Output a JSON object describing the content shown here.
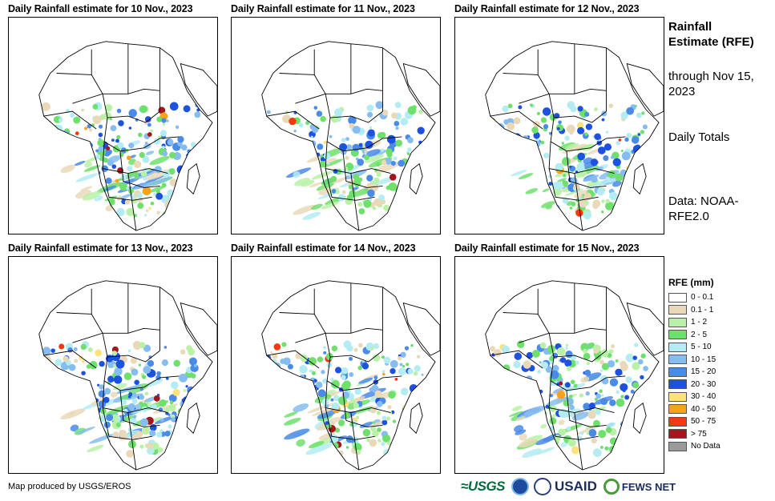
{
  "panels": [
    {
      "title": "Daily Rainfall estimate for 10 Nov., 2023",
      "seed": 11
    },
    {
      "title": "Daily Rainfall estimate for 11 Nov., 2023",
      "seed": 23
    },
    {
      "title": "Daily Rainfall estimate for 12 Nov., 2023",
      "seed": 37
    },
    {
      "title": "Daily Rainfall estimate for 13 Nov., 2023",
      "seed": 41
    },
    {
      "title": "Daily Rainfall estimate for 14 Nov., 2023",
      "seed": 53
    },
    {
      "title": "Daily Rainfall estimate for 15 Nov., 2023",
      "seed": 67
    }
  ],
  "side": {
    "title": "Rainfall Estimate (RFE)",
    "through": "through Nov 15, 2023",
    "daily": "Daily Totals",
    "data": "Data: NOAA-RFE2.0"
  },
  "legend": {
    "title": "RFE (mm)",
    "items": [
      {
        "label": "0 - 0.1",
        "color": "#ffffff"
      },
      {
        "label": "0.1 - 1",
        "color": "#ead9b8"
      },
      {
        "label": "1 - 2",
        "color": "#b9f2a7"
      },
      {
        "label": "2 - 5",
        "color": "#6fe06c"
      },
      {
        "label": "5 - 10",
        "color": "#b3ecf2"
      },
      {
        "label": "10 - 15",
        "color": "#86bdf0"
      },
      {
        "label": "15 - 20",
        "color": "#4a8ae8"
      },
      {
        "label": "20 - 30",
        "color": "#1d52e0"
      },
      {
        "label": "30 - 40",
        "color": "#ffe27a"
      },
      {
        "label": "40 - 50",
        "color": "#f7a21a"
      },
      {
        "label": "50 - 75",
        "color": "#f23a0e"
      },
      {
        "label": "> 75",
        "color": "#a3171a"
      },
      {
        "label": "No Data",
        "color": "#9a9a9a"
      }
    ]
  },
  "credit": "Map produced by USGS/EROS",
  "logos": {
    "usgs": "≈USGS",
    "usaid": "USAID",
    "fews": "FEWS NET"
  }
}
